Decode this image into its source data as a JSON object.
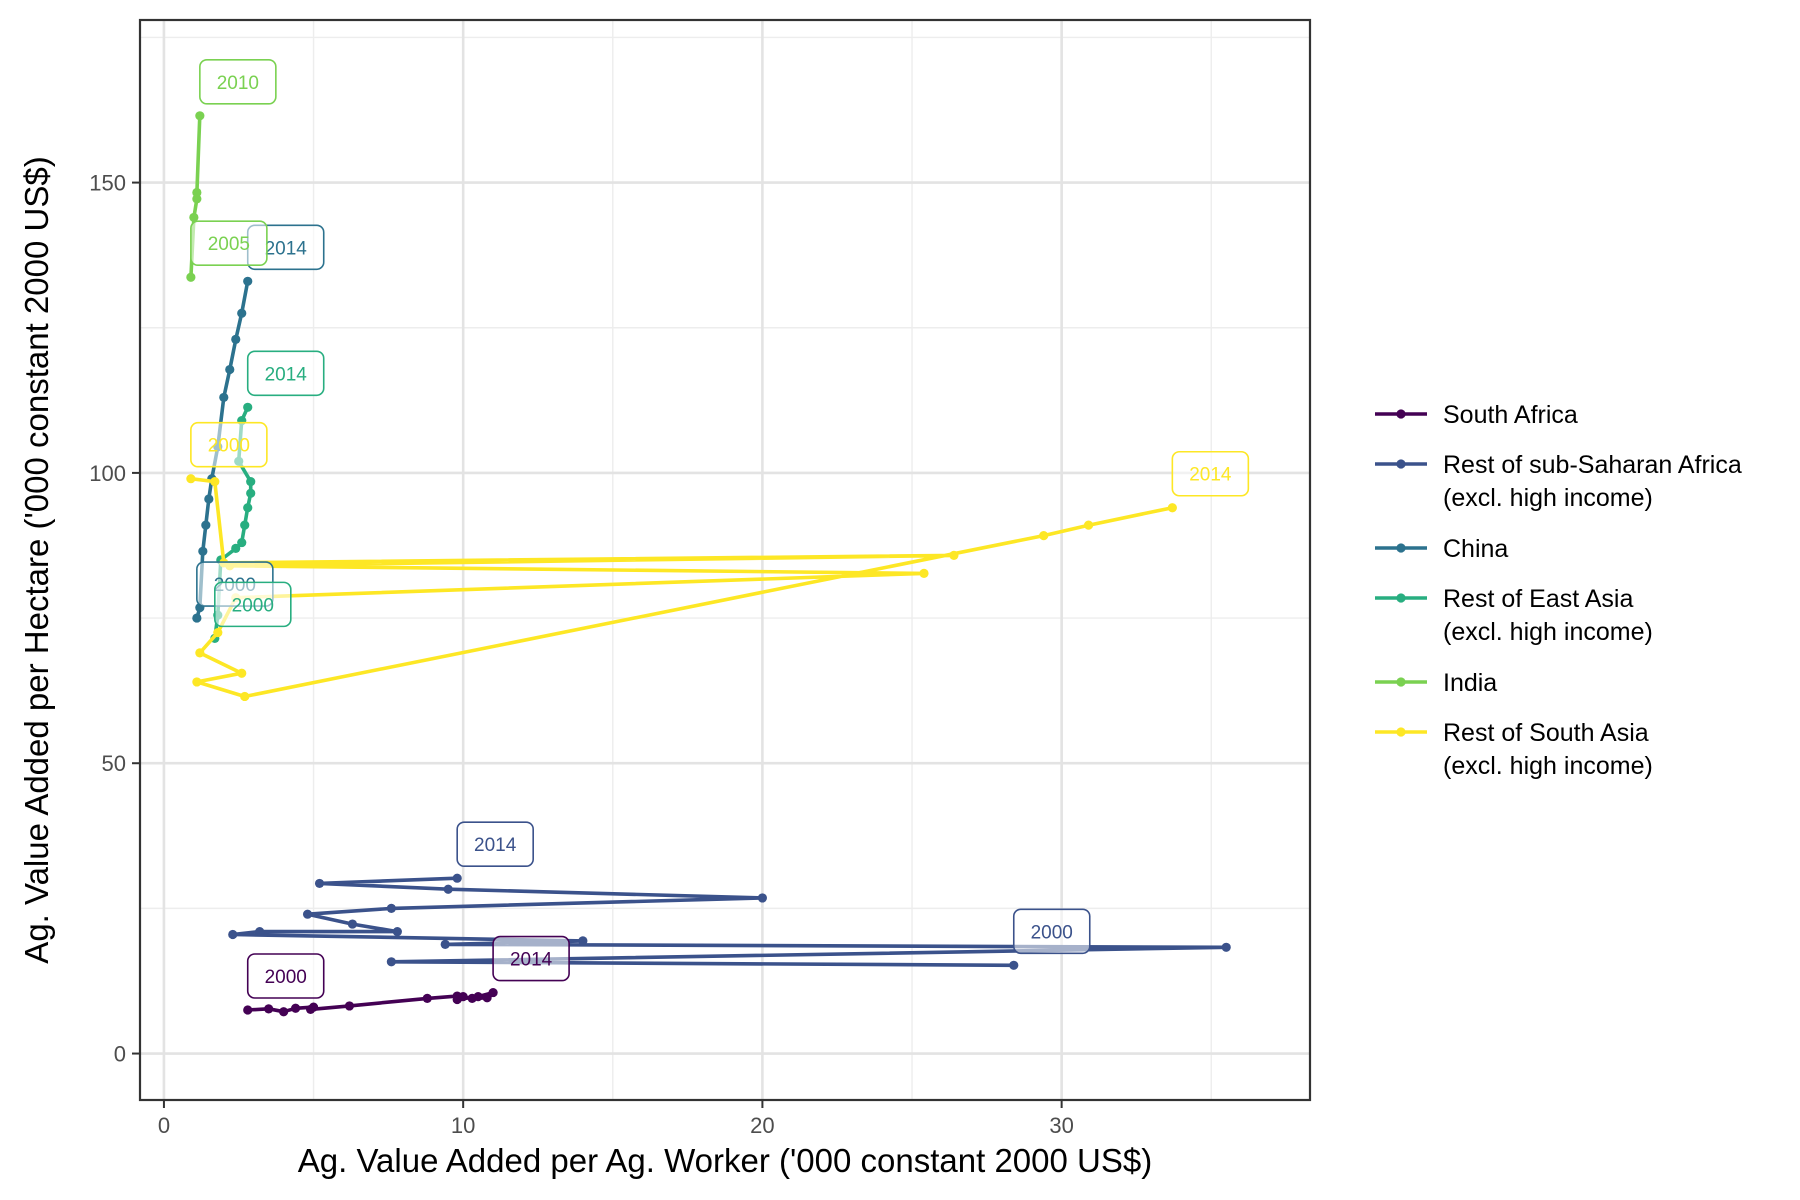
{
  "chart_data": {
    "type": "line",
    "title": "",
    "xlabel": "Ag. Value Added per Ag. Worker ('000 constant 2000 US$)",
    "ylabel": "Ag. Value Added per Hectare ('000 constant 2000 US$)",
    "xlim": [
      -0.8,
      38.3
    ],
    "ylim": [
      -8,
      178
    ],
    "x_ticks": [
      0,
      10,
      20,
      30
    ],
    "y_ticks": [
      0,
      50,
      100,
      150
    ],
    "grid": true,
    "legend_position": "right",
    "series": [
      {
        "name": "South Africa",
        "color": "#440154",
        "points": [
          [
            2.8,
            7.5
          ],
          [
            3.5,
            7.7
          ],
          [
            4.0,
            7.2
          ],
          [
            4.4,
            7.8
          ],
          [
            5.0,
            8.0
          ],
          [
            4.9,
            7.6
          ],
          [
            6.2,
            8.2
          ],
          [
            8.8,
            9.5
          ],
          [
            9.8,
            9.9
          ],
          [
            10.3,
            9.5
          ],
          [
            10.8,
            9.6
          ],
          [
            11.0,
            10.5
          ],
          [
            10.5,
            9.8
          ],
          [
            9.8,
            9.3
          ],
          [
            10.0,
            9.8
          ]
        ],
        "labels": [
          {
            "text": "2000",
            "x": 2.8,
            "y": 7.5
          },
          {
            "text": "2014",
            "x": 11.0,
            "y": 10.5
          }
        ]
      },
      {
        "name": "Rest of sub-Saharan Africa\n(excl. high income)",
        "color": "#3B528B",
        "points": [
          [
            28.4,
            15.2
          ],
          [
            7.6,
            15.8
          ],
          [
            35.5,
            18.3
          ],
          [
            9.4,
            18.8
          ],
          [
            14.0,
            19.4
          ],
          [
            2.3,
            20.5
          ],
          [
            3.2,
            21.0
          ],
          [
            7.8,
            21.0
          ],
          [
            6.3,
            22.3
          ],
          [
            4.8,
            24.0
          ],
          [
            7.6,
            25.0
          ],
          [
            20.0,
            26.8
          ],
          [
            9.5,
            28.3
          ],
          [
            5.2,
            29.3
          ],
          [
            9.8,
            30.2
          ]
        ],
        "labels": [
          {
            "text": "2000",
            "x": 28.4,
            "y": 15.2
          },
          {
            "text": "2014",
            "x": 9.8,
            "y": 30.2
          }
        ]
      },
      {
        "name": "China",
        "color": "#21908C",
        "shade": "#2C728E",
        "points": [
          [
            1.1,
            75.0
          ],
          [
            1.2,
            76.8
          ],
          [
            1.3,
            86.5
          ],
          [
            1.4,
            91.0
          ],
          [
            1.5,
            95.5
          ],
          [
            1.6,
            99.0
          ],
          [
            1.8,
            104.5
          ],
          [
            2.0,
            113.0
          ],
          [
            2.2,
            117.8
          ],
          [
            2.4,
            123.0
          ],
          [
            2.6,
            127.5
          ],
          [
            2.8,
            133.0
          ]
        ],
        "labels": [
          {
            "text": "2000",
            "x": 1.1,
            "y": 75.0
          },
          {
            "text": "2014",
            "x": 2.8,
            "y": 133.0
          }
        ]
      },
      {
        "name": "Rest of East Asia\n(excl. high income)",
        "color": "#28AE80",
        "points": [
          [
            1.7,
            71.5
          ],
          [
            1.8,
            75.5
          ],
          [
            1.9,
            85.0
          ],
          [
            2.4,
            87.0
          ],
          [
            2.6,
            88.0
          ],
          [
            2.7,
            91.0
          ],
          [
            2.8,
            94.0
          ],
          [
            2.9,
            96.5
          ],
          [
            2.9,
            98.5
          ],
          [
            2.5,
            102.0
          ],
          [
            2.6,
            109.0
          ],
          [
            2.8,
            111.3
          ]
        ],
        "labels": [
          {
            "text": "2000",
            "x": 1.7,
            "y": 71.5
          },
          {
            "text": "2014",
            "x": 2.8,
            "y": 111.3
          }
        ]
      },
      {
        "name": "India",
        "color": "#7AD151",
        "points": [
          [
            0.9,
            133.7
          ],
          [
            1.0,
            144.0
          ],
          [
            1.1,
            147.2
          ],
          [
            1.1,
            148.3
          ],
          [
            1.2,
            161.5
          ]
        ],
        "labels": [
          {
            "text": "2005",
            "x": 0.9,
            "y": 133.7
          },
          {
            "text": "2010",
            "x": 1.2,
            "y": 161.5
          }
        ]
      },
      {
        "name": "Rest of South Asia\n(excl. high income)",
        "color": "#FDE725",
        "points": [
          [
            0.9,
            99.0
          ],
          [
            1.7,
            98.5
          ],
          [
            2.0,
            84.5
          ],
          [
            26.4,
            85.8
          ],
          [
            2.2,
            84.0
          ],
          [
            25.4,
            82.7
          ],
          [
            2.4,
            78.5
          ],
          [
            1.8,
            72.5
          ],
          [
            1.2,
            69.0
          ],
          [
            2.6,
            65.5
          ],
          [
            1.1,
            64.0
          ],
          [
            2.7,
            61.5
          ],
          [
            29.4,
            89.2
          ],
          [
            30.9,
            91.0
          ],
          [
            33.7,
            94.0
          ]
        ],
        "labels": [
          {
            "text": "2000",
            "x": 0.9,
            "y": 99.0
          },
          {
            "text": "2014",
            "x": 33.7,
            "y": 94.0
          }
        ]
      }
    ]
  }
}
